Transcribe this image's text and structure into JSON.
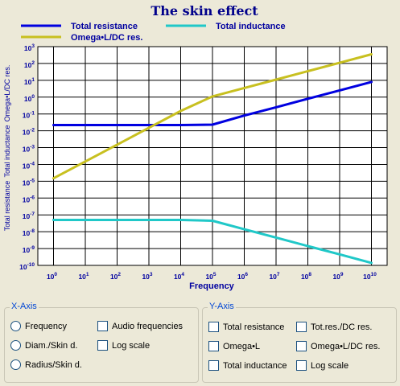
{
  "chart_data": {
    "type": "line",
    "title": "The skin effect",
    "xlabel": "Frequency",
    "ylabel_segments": [
      "Total resistance",
      "Total inductance",
      "Omega•L/DC res."
    ],
    "x_scale": "log",
    "y_scale": "log",
    "xlim": [
      1,
      10000000000
    ],
    "ylim": [
      1e-10,
      1000
    ],
    "x_ticks": [
      {
        "base": "10",
        "exp": "0"
      },
      {
        "base": "10",
        "exp": "1"
      },
      {
        "base": "10",
        "exp": "2"
      },
      {
        "base": "10",
        "exp": "3"
      },
      {
        "base": "10",
        "exp": "4"
      },
      {
        "base": "10",
        "exp": "5"
      },
      {
        "base": "10",
        "exp": "6"
      },
      {
        "base": "10",
        "exp": "7"
      },
      {
        "base": "10",
        "exp": "8"
      },
      {
        "base": "10",
        "exp": "9"
      },
      {
        "base": "10",
        "exp": "10"
      }
    ],
    "y_ticks": [
      {
        "base": "10",
        "exp": "3"
      },
      {
        "base": "10",
        "exp": "2"
      },
      {
        "base": "10",
        "exp": "1"
      },
      {
        "base": "10",
        "exp": "0"
      },
      {
        "base": "10",
        "exp": "-1"
      },
      {
        "base": "10",
        "exp": "-2"
      },
      {
        "base": "10",
        "exp": "-3"
      },
      {
        "base": "10",
        "exp": "-4"
      },
      {
        "base": "10",
        "exp": "-5"
      },
      {
        "base": "10",
        "exp": "-6"
      },
      {
        "base": "10",
        "exp": "-7"
      },
      {
        "base": "10",
        "exp": "-8"
      },
      {
        "base": "10",
        "exp": "-9"
      },
      {
        "base": "10",
        "exp": "-10"
      }
    ],
    "grid": true,
    "legend_position": "top",
    "series": [
      {
        "name": "Total resistance",
        "color": "#0000E0",
        "x": [
          1,
          10,
          100,
          1000,
          10000,
          100000,
          1000000,
          10000000,
          100000000,
          1000000000,
          10000000000
        ],
        "y": [
          0.022,
          0.022,
          0.022,
          0.022,
          0.022,
          0.023,
          0.08,
          0.25,
          0.8,
          2.5,
          8
        ]
      },
      {
        "name": "Total inductance",
        "color": "#20C8C8",
        "x": [
          1,
          10,
          100,
          1000,
          10000,
          100000,
          1000000,
          10000000,
          100000000,
          1000000000,
          10000000000
        ],
        "y": [
          5e-08,
          5e-08,
          5e-08,
          5e-08,
          5e-08,
          4.5e-08,
          1.4e-08,
          4.5e-09,
          1.4e-09,
          4.5e-10,
          1.4e-10
        ]
      },
      {
        "name": "Omega•L/DC res.",
        "color": "#C8C020",
        "x": [
          1,
          10,
          100,
          1000,
          10000,
          100000,
          1000000,
          10000000,
          100000000,
          1000000000,
          10000000000
        ],
        "y": [
          1.5e-05,
          0.00015,
          0.0015,
          0.015,
          0.15,
          1.1,
          3.5,
          11,
          35,
          110,
          350
        ]
      }
    ]
  },
  "xaxis_group": {
    "title": "X-Axis",
    "options": [
      {
        "label": "Frequency",
        "kind": "radio",
        "checked": true
      },
      {
        "label": "Diam./Skin d.",
        "kind": "radio",
        "checked": false
      },
      {
        "label": "Radius/Skin d.",
        "kind": "radio",
        "checked": false
      },
      {
        "label": "Audio frequencies",
        "kind": "checkbox",
        "checked": false
      },
      {
        "label": "Log scale",
        "kind": "checkbox",
        "checked": true
      }
    ]
  },
  "yaxis_group": {
    "title": "Y-Axis",
    "options": [
      {
        "label": "Total resistance",
        "kind": "checkbox",
        "checked": true
      },
      {
        "label": "Omega•L",
        "kind": "checkbox",
        "checked": false
      },
      {
        "label": "Total inductance",
        "kind": "checkbox",
        "checked": true
      },
      {
        "label": "Tot.res./DC res.",
        "kind": "checkbox",
        "checked": false
      },
      {
        "label": "Omega•L/DC res.",
        "kind": "checkbox",
        "checked": true
      },
      {
        "label": "Log scale",
        "kind": "checkbox",
        "checked": true
      }
    ]
  }
}
